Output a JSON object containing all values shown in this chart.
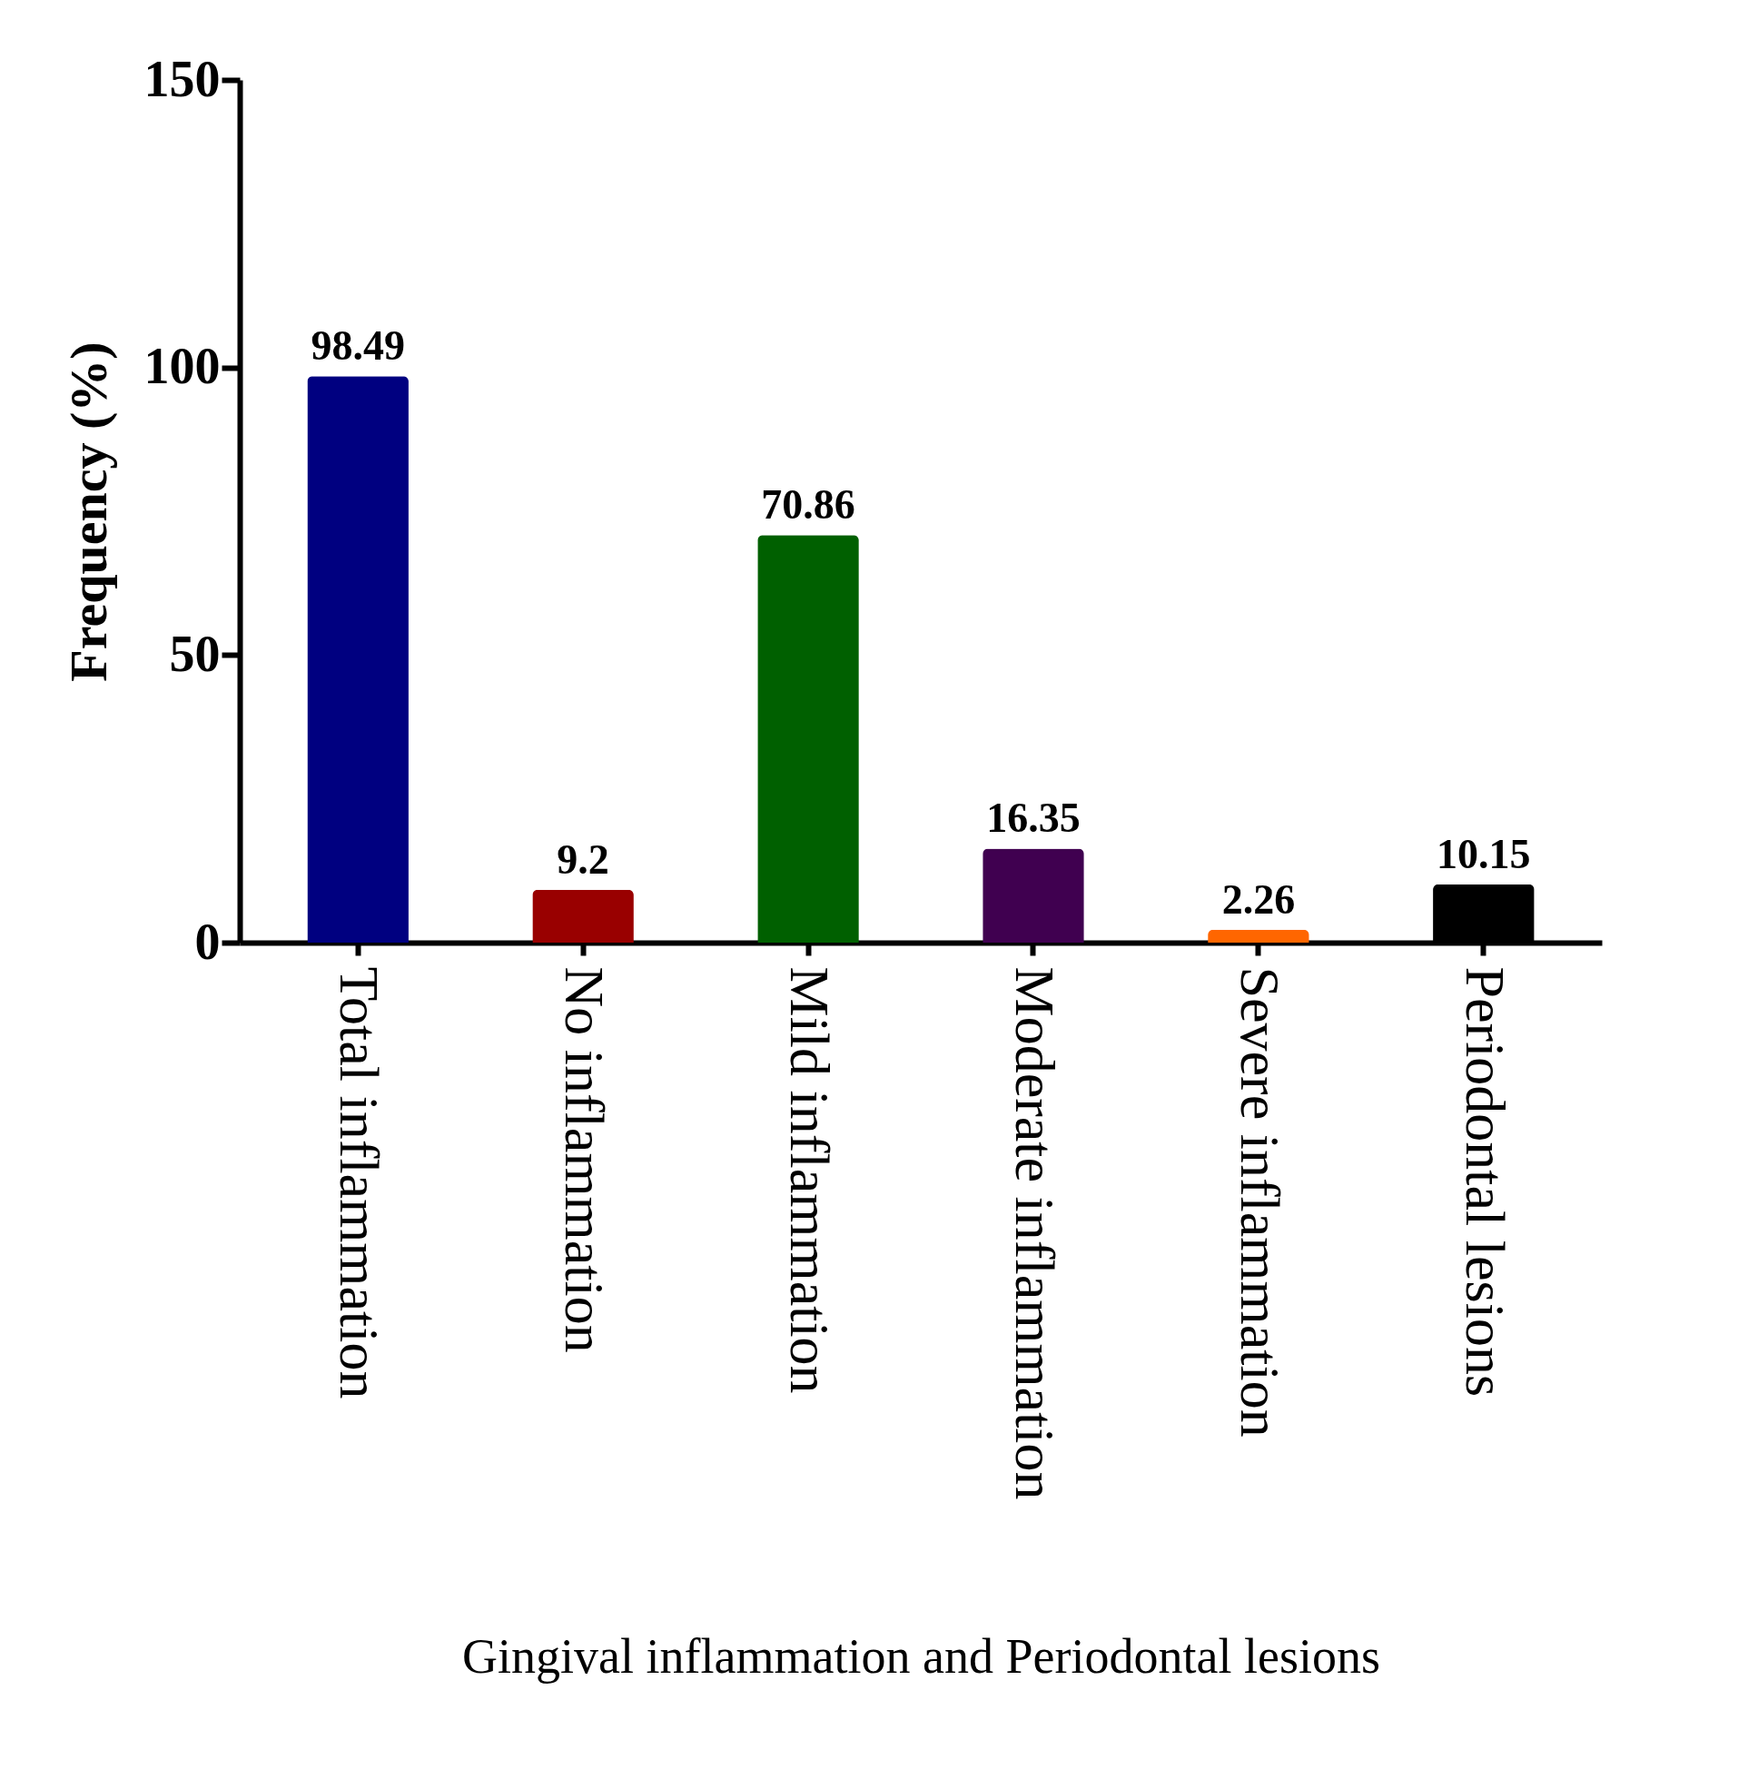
{
  "chart_data": {
    "type": "bar",
    "xlabel": "Gingival inflammation and Periodontal  lesions",
    "ylabel": "Frequency (%)",
    "categories": [
      "Total inflammation",
      "No inflammation",
      "Mild inflammation",
      "Moderate inflammation",
      "Severe inflammation",
      "Periodontal  lesions"
    ],
    "values": [
      98.49,
      9.2,
      70.86,
      16.35,
      2.26,
      10.15
    ],
    "colors": [
      "#000080",
      "#990000",
      "#006000",
      "#400050",
      "#ff6600",
      "#000000"
    ],
    "ylim": [
      0,
      150
    ],
    "yticks": [
      0,
      50,
      100,
      150
    ],
    "data_labels": true,
    "grid": false,
    "legend": false
  }
}
